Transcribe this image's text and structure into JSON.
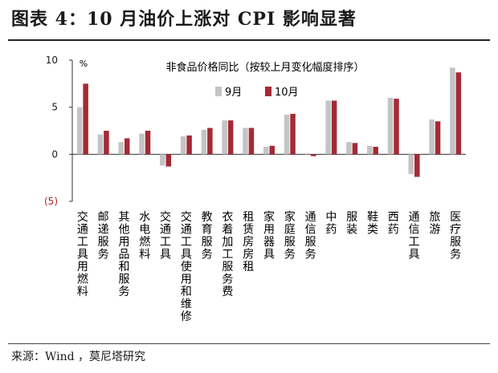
{
  "title": "图表 4：10 月油价上涨对 CPI 影响显著",
  "source": "来源：Wind ，莫尼塔研究",
  "chart_data": {
    "type": "bar",
    "title": "非食品价格同比（按较上月变化幅度排序）",
    "unit": "%",
    "ylim": [
      -5,
      10
    ],
    "yticks": [
      10,
      5,
      0,
      -5
    ],
    "ytick_labels": [
      "10",
      "5",
      "0",
      "(5)"
    ],
    "negative_tick_color": "#b22222",
    "grid": false,
    "legend_position": "top",
    "categories": [
      "交通工具用燃料",
      "邮递服务",
      "其他用品和服务",
      "水电燃料",
      "交通工具",
      "交通工具使用和维修",
      "教育服务",
      "衣着加工服务费",
      "租赁房房租",
      "家用器具",
      "家庭服务",
      "通信服务",
      "中药",
      "服装",
      "鞋类",
      "西药",
      "通信工具",
      "旅游",
      "医疗服务"
    ],
    "series": [
      {
        "name": "9月",
        "color": "#c4c4c4",
        "values": [
          5.0,
          2.1,
          1.3,
          2.2,
          -1.2,
          1.9,
          2.6,
          3.6,
          2.8,
          0.8,
          4.2,
          0.0,
          5.7,
          1.3,
          0.9,
          6.0,
          -2.1,
          3.7,
          9.2
        ]
      },
      {
        "name": "10月",
        "color": "#a52a35",
        "values": [
          7.5,
          2.5,
          1.7,
          2.5,
          -1.3,
          2.0,
          2.8,
          3.6,
          2.8,
          0.9,
          4.3,
          -0.2,
          5.7,
          1.2,
          0.8,
          5.9,
          -2.4,
          3.5,
          8.7
        ]
      }
    ]
  }
}
